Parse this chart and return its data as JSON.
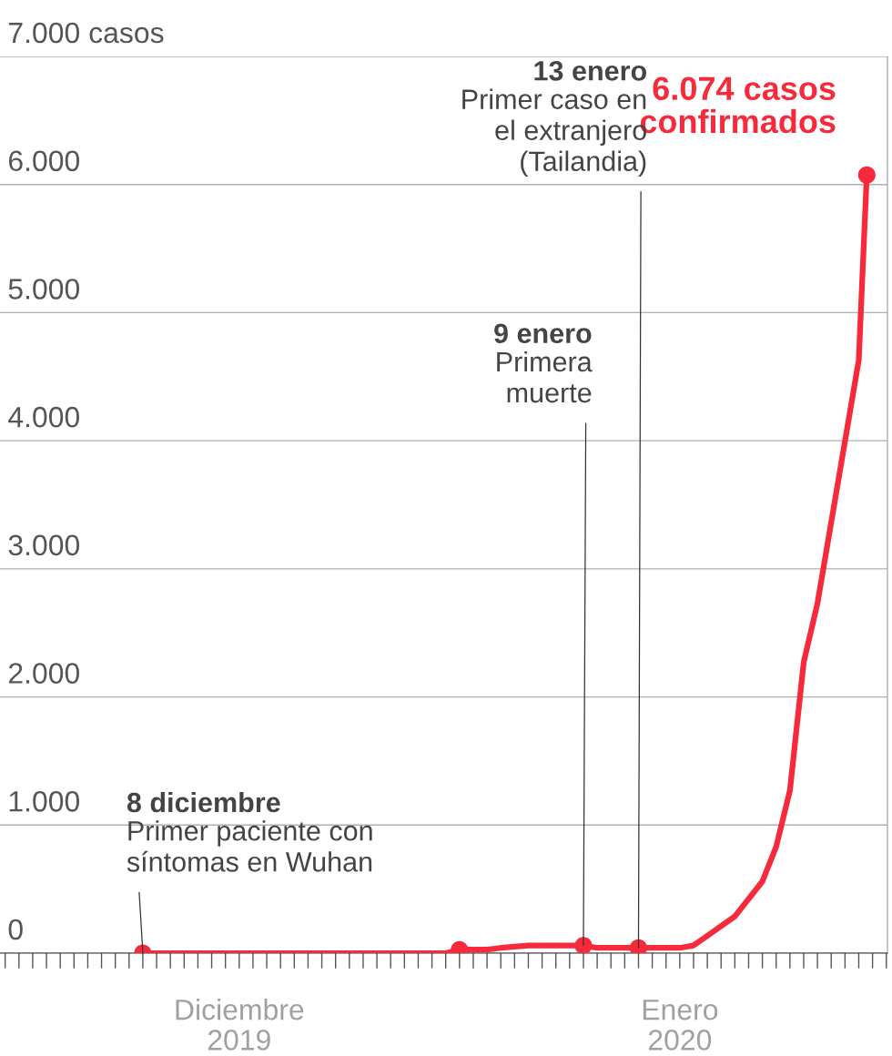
{
  "chart_data": {
    "type": "line",
    "x": [
      "2019-12-08",
      "2019-12-30",
      "2019-12-31",
      "2020-01-02",
      "2020-01-03",
      "2020-01-05",
      "2020-01-09",
      "2020-01-10",
      "2020-01-13",
      "2020-01-16",
      "2020-01-17",
      "2020-01-18",
      "2020-01-20",
      "2020-01-22",
      "2020-01-23",
      "2020-01-24",
      "2020-01-25",
      "2020-01-26",
      "2020-01-29",
      "2020-01-29T14:00"
    ],
    "series": [
      {
        "color": "#f62a3a",
        "values": [
          0,
          0,
          27,
          27,
          41,
          59,
          59,
          41,
          41,
          41,
          60,
          135,
          287,
          560,
          830,
          1270,
          2270,
          2730,
          4630,
          6074
        ]
      },
      {
        "type": "scatter",
        "marker": "circle",
        "color": "#f62a3a",
        "x": [
          "2019-12-08",
          "2019-12-31",
          "2020-01-09",
          "2020-01-13",
          "2020-01-29T14:00"
        ],
        "values": [
          0,
          27,
          59,
          41,
          6074
        ]
      }
    ],
    "xlim": [
      "2019-11-27T15:00",
      "2020-01-31T02:00"
    ],
    "xticks": [
      {
        "value": "2019-12-15",
        "label": "Diciembre\n2019"
      },
      {
        "value": "2020-01-16",
        "label": "Enero\n2020"
      }
    ],
    "ylim": [
      0,
      7000
    ],
    "yticks": [
      {
        "value": 0,
        "label": "0"
      },
      {
        "value": 1000,
        "label": "1.000"
      },
      {
        "value": 2000,
        "label": "2.000"
      },
      {
        "value": 3000,
        "label": "3.000"
      },
      {
        "value": 4000,
        "label": "4.000"
      },
      {
        "value": 5000,
        "label": "5.000"
      },
      {
        "value": 6000,
        "label": "6.000"
      },
      {
        "value": 7000,
        "label": "7.000 casos"
      }
    ],
    "grid": "y",
    "marker": "none",
    "annotations": [
      "8 diciembre",
      {
        "text": "Primer paciente con\nsíntomas en Wuhan",
        "x": "2019-12-08",
        "y": 0
      },
      "9 enero",
      {
        "text": "Primera\nmuerte",
        "x": "2020-01-09",
        "y": 59
      },
      "13 enero",
      {
        "text": "Primer caso en\nel extranjero\n(Tailandia)",
        "x": "2020-01-13",
        "y": 41
      },
      {
        "text": "6.074 casos\nconfirmados",
        "x": "2020-01-29T14:00",
        "y": 6074
      }
    ]
  }
}
